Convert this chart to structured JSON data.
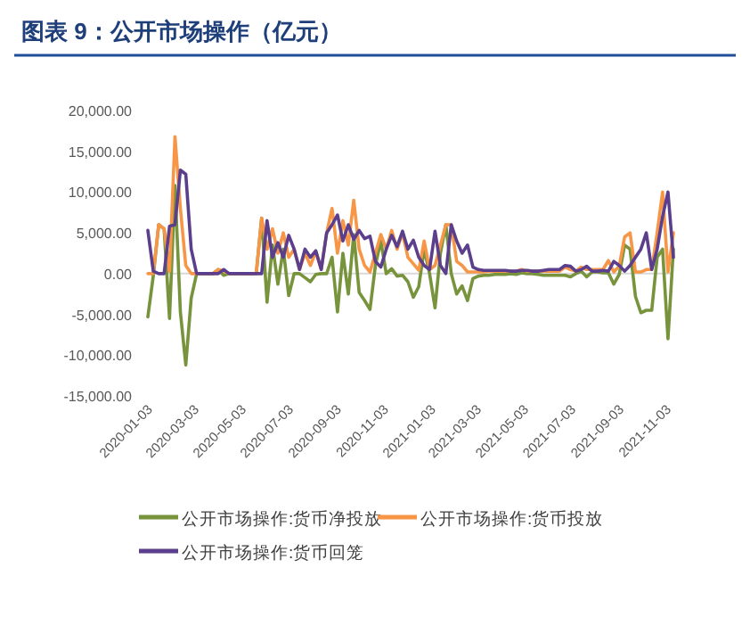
{
  "chart_data": {
    "type": "line",
    "title": "图表 9：公开市场操作（亿元）",
    "x": [
      "2020-01-03",
      "2020-01-10",
      "2020-01-17",
      "2020-01-24",
      "2020-01-31",
      "2020-02-07",
      "2020-02-14",
      "2020-02-21",
      "2020-02-28",
      "2020-03-06",
      "2020-03-13",
      "2020-03-20",
      "2020-03-27",
      "2020-04-03",
      "2020-04-10",
      "2020-04-17",
      "2020-04-24",
      "2020-05-01",
      "2020-05-08",
      "2020-05-15",
      "2020-05-22",
      "2020-05-29",
      "2020-06-05",
      "2020-06-12",
      "2020-06-19",
      "2020-06-26",
      "2020-07-03",
      "2020-07-10",
      "2020-07-17",
      "2020-07-24",
      "2020-07-31",
      "2020-08-07",
      "2020-08-14",
      "2020-08-21",
      "2020-08-28",
      "2020-09-04",
      "2020-09-11",
      "2020-09-18",
      "2020-09-25",
      "2020-10-02",
      "2020-10-09",
      "2020-10-16",
      "2020-10-23",
      "2020-10-30",
      "2020-11-06",
      "2020-11-13",
      "2020-11-20",
      "2020-11-27",
      "2020-12-04",
      "2020-12-11",
      "2020-12-18",
      "2020-12-25",
      "2021-01-01",
      "2021-01-08",
      "2021-01-15",
      "2021-01-22",
      "2021-01-29",
      "2021-02-05",
      "2021-02-12",
      "2021-02-19",
      "2021-02-26",
      "2021-03-05",
      "2021-03-12",
      "2021-03-19",
      "2021-03-26",
      "2021-04-02",
      "2021-04-09",
      "2021-04-16",
      "2021-04-23",
      "2021-04-30",
      "2021-05-07",
      "2021-05-14",
      "2021-05-21",
      "2021-05-28",
      "2021-06-04",
      "2021-06-11",
      "2021-06-18",
      "2021-06-25",
      "2021-07-02",
      "2021-07-09",
      "2021-07-16",
      "2021-07-23",
      "2021-07-30",
      "2021-08-06",
      "2021-08-13",
      "2021-08-20",
      "2021-08-27",
      "2021-09-03",
      "2021-09-10",
      "2021-09-17",
      "2021-09-24",
      "2021-10-01",
      "2021-10-08",
      "2021-10-15",
      "2021-10-22",
      "2021-10-29",
      "2021-11-05",
      "2021-11-12"
    ],
    "series": [
      {
        "name": "公开市场操作:货币净投放",
        "color": "#77933c",
        "values": [
          -5300,
          -300,
          6000,
          5500,
          -5500,
          10800,
          -4700,
          -11200,
          -3000,
          0,
          0,
          0,
          0,
          500,
          -200,
          0,
          0,
          0,
          0,
          0,
          0,
          6800,
          -3500,
          3500,
          -1300,
          3000,
          -2700,
          0,
          0,
          -500,
          -1000,
          -100,
          0,
          0,
          2000,
          -4700,
          2500,
          -2500,
          4800,
          -2300,
          -3300,
          -4400,
          1000,
          4000,
          0,
          600,
          -300,
          -200,
          -1000,
          -2900,
          -1600,
          3000,
          0,
          -4200,
          2500,
          6000,
          0,
          -2500,
          -1500,
          -3300,
          -600,
          -300,
          -200,
          -200,
          -100,
          -100,
          -100,
          0,
          -100,
          100,
          0,
          0,
          -100,
          -200,
          -200,
          -200,
          -200,
          -200,
          -400,
          0,
          300,
          -400,
          200,
          200,
          100,
          100,
          -1300,
          -100,
          3500,
          3000,
          -2800,
          -4800,
          -4500,
          -4500,
          2000,
          3000,
          -8000,
          3000
        ]
      },
      {
        "name": "公开市场操作:货币投放",
        "color": "#f79646",
        "values": [
          0,
          0,
          6000,
          5500,
          300,
          16800,
          8000,
          1000,
          0,
          0,
          0,
          0,
          0,
          500,
          300,
          0,
          0,
          0,
          0,
          0,
          0,
          6800,
          3000,
          5500,
          2500,
          5000,
          2000,
          3000,
          500,
          2500,
          1000,
          2700,
          500,
          5000,
          8000,
          2500,
          6500,
          3500,
          9000,
          3000,
          1000,
          200,
          2500,
          4800,
          3000,
          5300,
          3000,
          5000,
          2000,
          1200,
          400,
          4000,
          500,
          1000,
          3500,
          6000,
          6000,
          1500,
          1000,
          200,
          200,
          200,
          200,
          300,
          300,
          300,
          300,
          300,
          300,
          500,
          300,
          300,
          300,
          300,
          300,
          300,
          300,
          800,
          500,
          300,
          800,
          500,
          500,
          500,
          500,
          1600,
          200,
          900,
          4500,
          5000,
          200,
          200,
          500,
          500,
          5000,
          10000,
          200,
          5000
        ]
      },
      {
        "name": "公开市场操作:货币回笼",
        "color": "#5b3f8c",
        "values": [
          5300,
          300,
          0,
          0,
          5800,
          6000,
          12700,
          12200,
          3000,
          0,
          0,
          0,
          0,
          0,
          500,
          0,
          0,
          0,
          0,
          0,
          0,
          0,
          6500,
          2000,
          3800,
          2000,
          4700,
          3000,
          500,
          3000,
          2000,
          2800,
          500,
          5000,
          6000,
          7200,
          4000,
          6000,
          4200,
          5300,
          4300,
          4600,
          1500,
          800,
          3000,
          4700,
          3300,
          5200,
          3000,
          4100,
          2000,
          1000,
          500,
          5200,
          1000,
          0,
          6000,
          4000,
          2500,
          3500,
          800,
          500,
          400,
          400,
          400,
          400,
          400,
          300,
          300,
          400,
          400,
          300,
          300,
          400,
          500,
          500,
          500,
          1000,
          900,
          300,
          500,
          900,
          300,
          300,
          400,
          300,
          1500,
          1000,
          300,
          1000,
          2000,
          3000,
          5000,
          500,
          3000,
          7000,
          10000,
          2000
        ]
      }
    ],
    "xlim": [
      "2020-01-03",
      "2021-11-12"
    ],
    "xticks": [
      "2020-01-03",
      "2020-03-03",
      "2020-05-03",
      "2020-07-03",
      "2020-09-03",
      "2020-11-03",
      "2021-01-03",
      "2021-03-03",
      "2021-05-03",
      "2021-07-03",
      "2021-09-03",
      "2021-11-03"
    ],
    "ylim": [
      -15000,
      20000
    ],
    "yticks": [
      {
        "value": -15000,
        "label": "-15,000.00"
      },
      {
        "value": -10000,
        "label": "-10,000.00"
      },
      {
        "value": -5000,
        "label": "-5,000.00"
      },
      {
        "value": 0,
        "label": "0.00"
      },
      {
        "value": 5000,
        "label": "5,000.00"
      },
      {
        "value": 10000,
        "label": "10,000.00"
      },
      {
        "value": 15000,
        "label": "15,000.00"
      },
      {
        "value": 20000,
        "label": "20,000.00"
      }
    ],
    "legend": "bottom"
  }
}
